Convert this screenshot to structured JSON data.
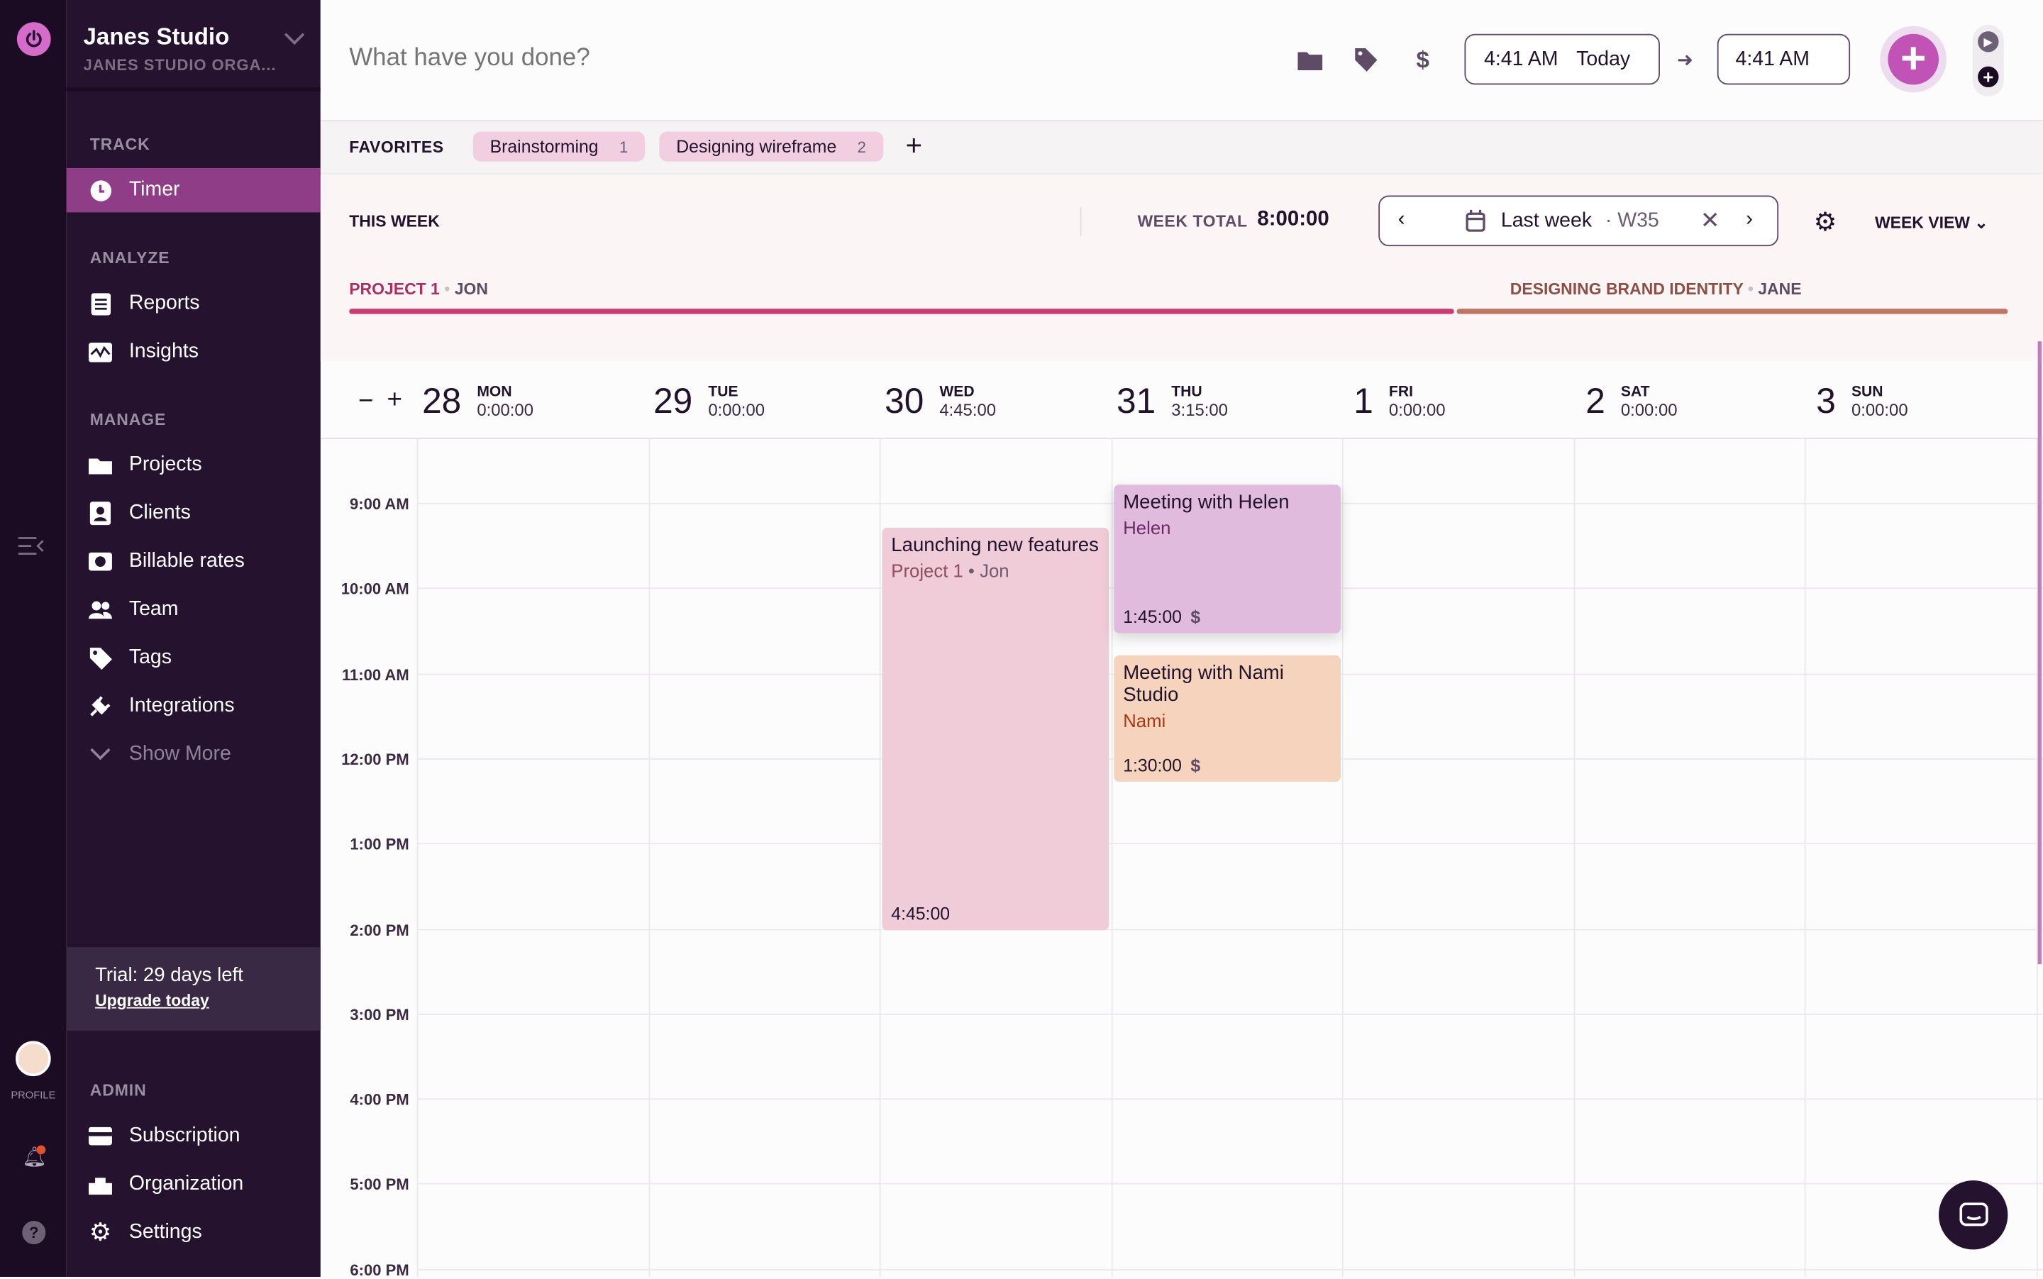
{
  "workspace": {
    "name": "Janes Studio",
    "org": "JANES STUDIO ORGA..."
  },
  "rail": {
    "profile_label": "PROFILE"
  },
  "sidebar": {
    "track_label": "TRACK",
    "analyze_label": "ANALYZE",
    "manage_label": "MANAGE",
    "admin_label": "ADMIN",
    "timer": "Timer",
    "reports": "Reports",
    "insights": "Insights",
    "projects": "Projects",
    "clients": "Clients",
    "billable_rates": "Billable rates",
    "team": "Team",
    "tags": "Tags",
    "integrations": "Integrations",
    "show_more": "Show More",
    "subscription": "Subscription",
    "organization": "Organization",
    "settings": "Settings",
    "trial": "Trial: 29 days left",
    "upgrade": "Upgrade today"
  },
  "topbar": {
    "placeholder": "What have you done?",
    "start_time": "4:41 AM",
    "start_day": "Today",
    "end_time": "4:41 AM"
  },
  "favorites": {
    "label": "FAVORITES",
    "items": [
      {
        "label": "Brainstorming",
        "count": "1"
      },
      {
        "label": "Designing wireframe",
        "count": "2"
      }
    ]
  },
  "week": {
    "label": "THIS WEEK",
    "total_label": "WEEK TOTAL",
    "total": "8:00:00",
    "range": "Last week",
    "week_no": "· W35",
    "view": "WEEK VIEW",
    "projects": [
      {
        "name": "PROJECT 1",
        "user": "JON",
        "color": "#cc3a72",
        "share": 0.667
      },
      {
        "name": "DESIGNING BRAND IDENTITY",
        "user": "JANE",
        "color": "#c07462",
        "share": 0.333
      }
    ]
  },
  "days": [
    {
      "num": "28",
      "name": "MON",
      "total": "0:00:00"
    },
    {
      "num": "29",
      "name": "TUE",
      "total": "0:00:00"
    },
    {
      "num": "30",
      "name": "WED",
      "total": "4:45:00"
    },
    {
      "num": "31",
      "name": "THU",
      "total": "3:15:00"
    },
    {
      "num": "1",
      "name": "FRI",
      "total": "0:00:00"
    },
    {
      "num": "2",
      "name": "SAT",
      "total": "0:00:00"
    },
    {
      "num": "3",
      "name": "SUN",
      "total": "0:00:00"
    }
  ],
  "hours": [
    "9:00 AM",
    "10:00 AM",
    "11:00 AM",
    "12:00 PM",
    "1:00 PM",
    "2:00 PM",
    "3:00 PM",
    "4:00 PM",
    "5:00 PM",
    "6:00 PM"
  ],
  "events": [
    {
      "title": "Launching new features",
      "project": "Project 1",
      "sep": "•",
      "user": "Jon",
      "duration": "4:45:00",
      "color": "#f0cbd8"
    },
    {
      "title": "Meeting with Helen",
      "client": "Helen",
      "duration": "1:45:00",
      "billable": "$",
      "color": "#e1bbdd"
    },
    {
      "title": "Meeting with Nami Studio",
      "client": "Nami",
      "duration": "1:30:00",
      "billable": "$",
      "color": "#f5d3bd"
    }
  ]
}
